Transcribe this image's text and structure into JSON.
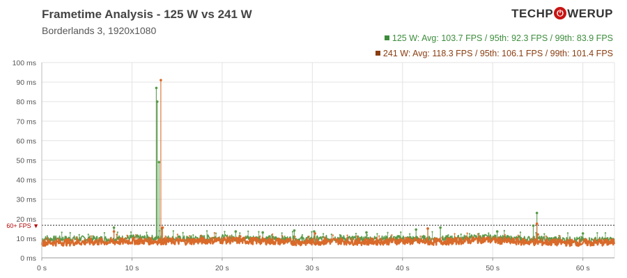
{
  "header": {
    "title": "Frametime Analysis - 125 W vs 241 W",
    "subtitle": "Borderlands 3, 1920x1080",
    "logo_left": "TECHP",
    "logo_icon": "⏻",
    "logo_right": "WERUP"
  },
  "legend": {
    "series1": "125  W: Avg: 103.7 FPS / 95th: 92.3  FPS / 99th: 83.9 FPS",
    "series2": "241  W: Avg: 118.3  FPS / 95th: 106.1  FPS / 99th: 101.4  FPS"
  },
  "colors": {
    "series1": "#5a9a4a",
    "series1_legend": "#3c8c3c",
    "series2": "#d96a2a",
    "series2_legend": "#8a3d10",
    "grid": "#e3e3e3"
  },
  "chart_data": {
    "type": "line",
    "title": "Frametime Analysis - 125 W vs 241 W",
    "subtitle": "Borderlands 3, 1920x1080",
    "xlabel": "",
    "ylabel": "",
    "xlim": [
      0,
      63.5
    ],
    "ylim": [
      0,
      100
    ],
    "x_ticks": [
      0,
      10,
      20,
      30,
      40,
      50,
      60
    ],
    "x_tick_labels": [
      "0 s",
      "10 s",
      "20 s",
      "30 s",
      "40 s",
      "50 s",
      "60 s"
    ],
    "y_ticks": [
      0,
      10,
      20,
      30,
      40,
      50,
      60,
      70,
      80,
      90,
      100
    ],
    "y_tick_labels": [
      "0 ms",
      "10 ms",
      "20 ms",
      "30 ms",
      "40 ms",
      "50 ms",
      "60 ms",
      "70 ms",
      "80 ms",
      "90 ms",
      "100 ms"
    ],
    "grid": true,
    "legend_position": "top-right",
    "reference_line": {
      "value": 16.7,
      "label": "60+ FPS ▼"
    },
    "series": [
      {
        "name": "125  W",
        "baseline": [
          [
            0,
            9.6
          ],
          [
            2,
            9.7
          ],
          [
            5,
            9.8
          ],
          [
            8,
            9.6
          ],
          [
            10,
            10.3
          ],
          [
            13,
            10.0
          ],
          [
            16,
            9.7
          ],
          [
            18,
            10.2
          ],
          [
            20,
            10.4
          ],
          [
            23,
            10.0
          ],
          [
            26,
            9.8
          ],
          [
            29,
            9.5
          ],
          [
            31,
            9.8
          ],
          [
            33,
            10.2
          ],
          [
            35,
            9.6
          ],
          [
            38,
            9.8
          ],
          [
            40,
            10.0
          ],
          [
            43,
            9.6
          ],
          [
            45,
            9.8
          ],
          [
            47,
            10.2
          ],
          [
            49,
            10.6
          ],
          [
            52,
            9.8
          ],
          [
            55,
            9.6
          ],
          [
            58,
            9.3
          ],
          [
            60,
            9.1
          ],
          [
            63.5,
            9.2
          ]
        ],
        "spikes": [
          [
            8.0,
            15.5
          ],
          [
            12.7,
            87.0
          ],
          [
            12.8,
            80.0
          ],
          [
            13.0,
            49.0
          ],
          [
            13.3,
            15.0
          ],
          [
            21.5,
            13.5
          ],
          [
            24.5,
            13.0
          ],
          [
            28.0,
            14.0
          ],
          [
            30.2,
            13.5
          ],
          [
            36.0,
            13.0
          ],
          [
            41.5,
            14.5
          ],
          [
            42.8,
            15.0
          ],
          [
            44.2,
            15.5
          ],
          [
            50.5,
            13.5
          ],
          [
            54.5,
            16.5
          ],
          [
            54.9,
            23.0
          ],
          [
            60.0,
            12.5
          ]
        ]
      },
      {
        "name": "241  W",
        "baseline": [
          [
            0,
            7.8
          ],
          [
            2,
            7.9
          ],
          [
            5,
            8.1
          ],
          [
            8,
            8.2
          ],
          [
            10,
            8.6
          ],
          [
            13,
            8.5
          ],
          [
            16,
            8.4
          ],
          [
            18,
            8.8
          ],
          [
            20,
            9.0
          ],
          [
            23,
            8.7
          ],
          [
            26,
            8.4
          ],
          [
            29,
            8.0
          ],
          [
            31,
            8.3
          ],
          [
            33,
            8.6
          ],
          [
            35,
            8.2
          ],
          [
            38,
            8.4
          ],
          [
            40,
            8.6
          ],
          [
            43,
            8.2
          ],
          [
            45,
            8.4
          ],
          [
            47,
            8.8
          ],
          [
            49,
            9.3
          ],
          [
            52,
            8.4
          ],
          [
            55,
            8.0
          ],
          [
            58,
            7.8
          ],
          [
            60,
            7.7
          ],
          [
            63.5,
            7.9
          ]
        ],
        "spikes": [
          [
            8.0,
            13.5
          ],
          [
            13.2,
            91.0
          ],
          [
            13.4,
            15.5
          ],
          [
            22.0,
            11.0
          ],
          [
            30.3,
            12.5
          ],
          [
            42.8,
            15.0
          ],
          [
            54.9,
            17.5
          ],
          [
            55.0,
            12.0
          ]
        ]
      }
    ]
  }
}
